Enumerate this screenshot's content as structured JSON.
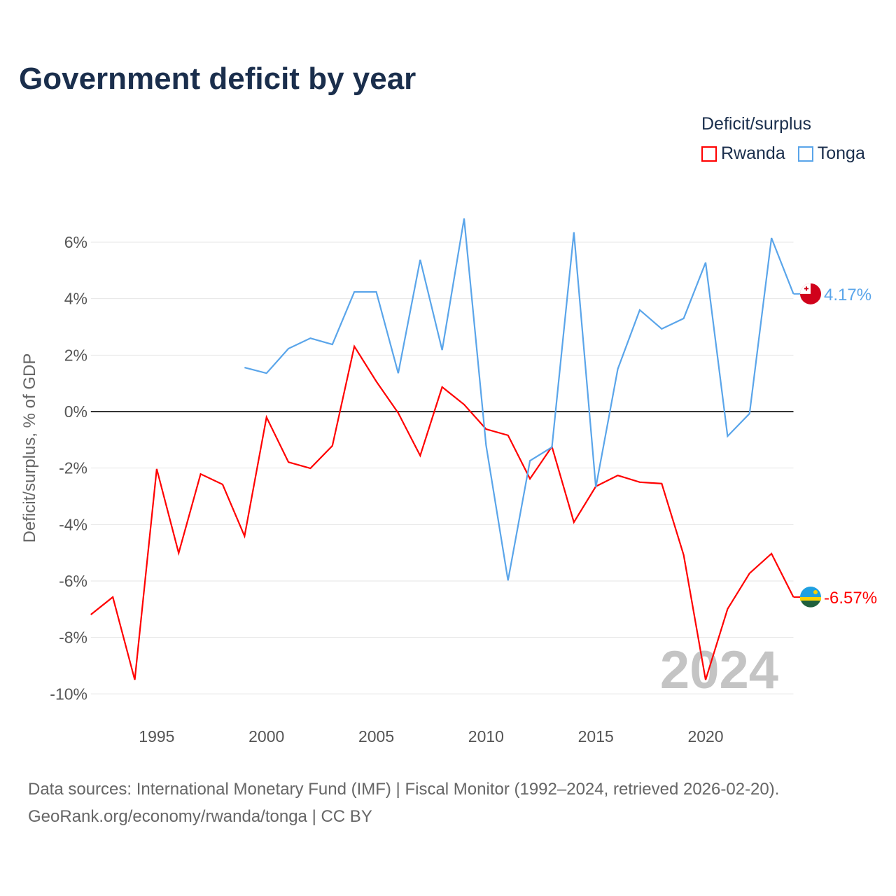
{
  "chart_data": {
    "type": "line",
    "title": "Government deficit by year",
    "ylabel": "Deficit/surplus, % of GDP",
    "xlabel": "",
    "ylim": [
      -10.5,
      7
    ],
    "xlim": [
      1992,
      2024
    ],
    "yticks": [
      6,
      4,
      2,
      0,
      -2,
      -4,
      -6,
      -8,
      -10
    ],
    "ytick_labels": [
      "6%",
      "4%",
      "2%",
      "0%",
      "-2%",
      "-4%",
      "-6%",
      "-8%",
      "-10%"
    ],
    "xticks": [
      1995,
      2000,
      2005,
      2010,
      2015,
      2020
    ],
    "xtick_labels": [
      "1995",
      "2000",
      "2005",
      "2010",
      "2015",
      "2020"
    ],
    "legend_title": "Deficit/surplus",
    "legend_placement": "top-right",
    "year_watermark": "2024",
    "series": [
      {
        "name": "Rwanda",
        "color": "#ff0000",
        "end_label": "-6.57%",
        "x": [
          1992,
          1993,
          1994,
          1995,
          1996,
          1997,
          1998,
          1999,
          2000,
          2001,
          2002,
          2003,
          2004,
          2005,
          2006,
          2007,
          2008,
          2009,
          2010,
          2011,
          2012,
          2013,
          2014,
          2015,
          2016,
          2017,
          2018,
          2019,
          2020,
          2021,
          2022,
          2023,
          2024
        ],
        "values": [
          -7.19,
          -6.57,
          -9.5,
          -2.03,
          -5.01,
          -2.21,
          -2.58,
          -4.41,
          -0.2,
          -1.79,
          -2.01,
          -1.21,
          2.31,
          1.07,
          -0.05,
          -1.56,
          0.87,
          0.25,
          -0.62,
          -0.84,
          -2.38,
          -1.24,
          -3.92,
          -2.65,
          -2.26,
          -2.5,
          -2.55,
          -5.08,
          -9.5,
          -6.99,
          -5.73,
          -5.03,
          -6.57
        ]
      },
      {
        "name": "Tonga",
        "color": "#5aa5ea",
        "end_label": "4.17%",
        "x": [
          1999,
          2000,
          2001,
          2002,
          2003,
          2004,
          2005,
          2006,
          2007,
          2008,
          2009,
          2010,
          2011,
          2012,
          2013,
          2014,
          2015,
          2016,
          2017,
          2018,
          2019,
          2020,
          2021,
          2022,
          2023,
          2024
        ],
        "values": [
          1.56,
          1.36,
          2.23,
          2.6,
          2.38,
          4.24,
          4.24,
          1.36,
          5.38,
          2.18,
          6.84,
          -1.19,
          -5.98,
          -1.74,
          -1.26,
          6.35,
          -2.68,
          1.51,
          3.6,
          2.93,
          3.3,
          5.28,
          -0.87,
          -0.07,
          6.15,
          4.17
        ]
      }
    ]
  },
  "footer": {
    "line1": "Data sources: International Monetary Fund (IMF) | Fiscal Monitor (1992–2024, retrieved 2026-02-20).",
    "line2": "GeoRank.org/economy/rwanda/tonga | CC BY"
  }
}
